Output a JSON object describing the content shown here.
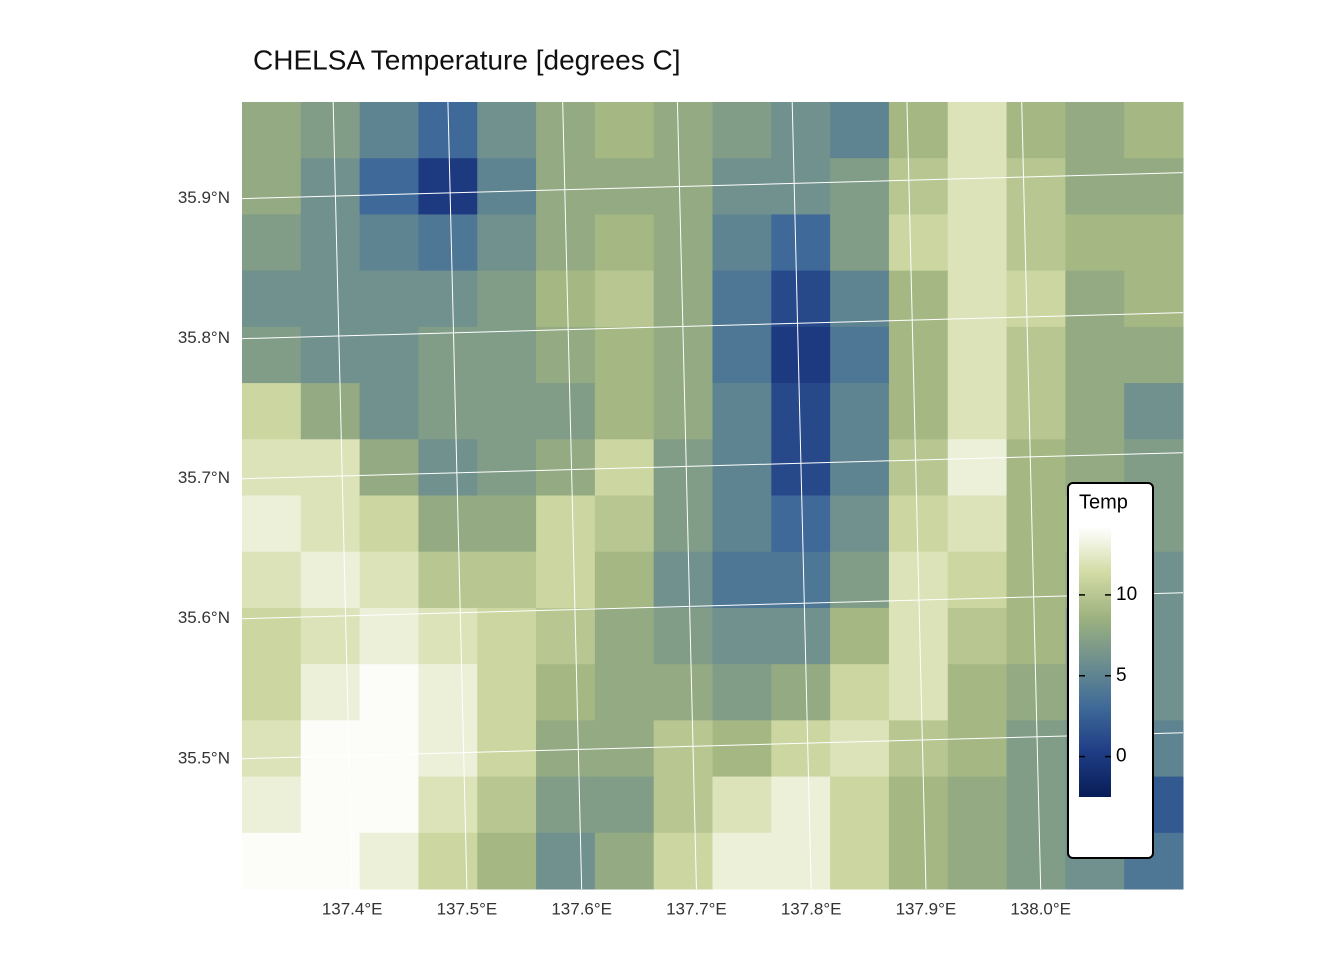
{
  "chart_data": {
    "type": "heatmap",
    "title": "CHELSA Temperature [degrees C]",
    "xticks": [
      {
        "value": 137.4,
        "label": "137.4°E"
      },
      {
        "value": 137.5,
        "label": "137.5°E"
      },
      {
        "value": 137.6,
        "label": "137.6°E"
      },
      {
        "value": 137.7,
        "label": "137.7°E"
      },
      {
        "value": 137.8,
        "label": "137.8°E"
      },
      {
        "value": 137.9,
        "label": "137.9°E"
      },
      {
        "value": 138.0,
        "label": "138.0°E"
      }
    ],
    "yticks": [
      {
        "value": 35.9,
        "label": "35.9°N"
      },
      {
        "value": 35.8,
        "label": "35.8°N"
      },
      {
        "value": 35.7,
        "label": "35.7°N"
      },
      {
        "value": 35.6,
        "label": "35.6°N"
      },
      {
        "value": 35.5,
        "label": "35.5°N"
      }
    ],
    "xlim": [
      137.304,
      138.124
    ],
    "ylim": [
      35.407,
      35.969
    ],
    "values": [
      [
        8,
        7,
        5,
        3,
        6,
        8,
        9,
        8,
        7,
        6,
        5,
        9,
        12,
        9,
        8,
        9
      ],
      [
        8,
        6,
        3,
        0,
        5,
        8,
        8,
        8,
        6,
        6,
        7,
        10,
        12,
        10,
        8,
        8
      ],
      [
        7,
        6,
        5,
        4,
        6,
        8,
        9,
        8,
        5,
        3,
        7,
        11,
        12,
        10,
        9,
        9
      ],
      [
        6,
        6,
        6,
        6,
        7,
        9,
        10,
        8,
        4,
        1,
        5,
        9,
        12,
        11,
        8,
        9
      ],
      [
        7,
        6,
        6,
        7,
        7,
        8,
        9,
        8,
        4,
        0,
        4,
        9,
        12,
        10,
        8,
        8
      ],
      [
        11,
        8,
        6,
        7,
        7,
        7,
        9,
        8,
        5,
        1,
        5,
        9,
        12,
        10,
        8,
        6
      ],
      [
        12,
        12,
        8,
        6,
        7,
        8,
        11,
        7,
        5,
        1,
        5,
        10,
        13,
        9,
        8,
        7
      ],
      [
        13,
        12,
        11,
        8,
        8,
        11,
        10,
        7,
        5,
        3,
        6,
        11,
        12,
        9,
        9,
        7
      ],
      [
        12,
        13,
        12,
        10,
        10,
        11,
        9,
        6,
        4,
        4,
        7,
        12,
        11,
        9,
        8,
        6
      ],
      [
        11,
        12,
        13,
        12,
        11,
        10,
        8,
        7,
        6,
        6,
        9,
        12,
        10,
        9,
        7,
        6
      ],
      [
        11,
        13,
        14,
        13,
        11,
        9,
        8,
        8,
        7,
        8,
        11,
        12,
        9,
        8,
        7,
        6
      ],
      [
        12,
        14,
        14,
        13,
        11,
        8,
        8,
        10,
        9,
        11,
        12,
        10,
        9,
        7,
        6,
        5
      ],
      [
        13,
        14,
        14,
        12,
        10,
        7,
        7,
        10,
        12,
        13,
        11,
        9,
        8,
        7,
        6,
        2
      ],
      [
        14,
        14,
        13,
        11,
        9,
        6,
        8,
        11,
        13,
        13,
        11,
        9,
        8,
        7,
        6,
        4
      ]
    ],
    "legend_title": "Temp",
    "zlim": [
      -2.5,
      14.2
    ],
    "zticks": [
      0,
      5,
      10
    ],
    "colormap": [
      "#081d58",
      "#1f3d85",
      "#3f6a98",
      "#6d8f8e",
      "#9eb27f",
      "#d3dca6",
      "#ffffff"
    ],
    "grid": true
  }
}
